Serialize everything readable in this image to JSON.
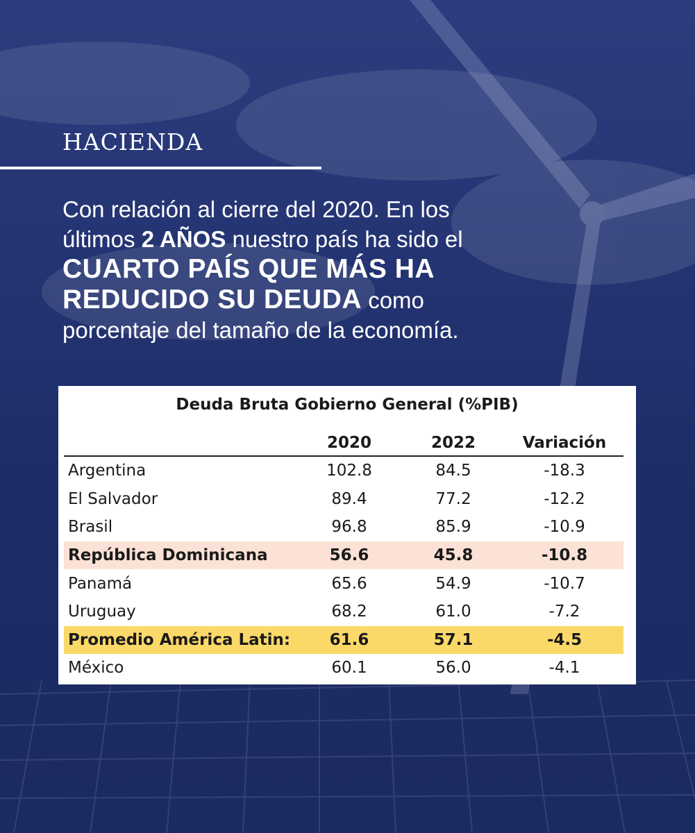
{
  "header": {
    "section_title": "HACIENDA"
  },
  "intro": {
    "line1": "Con relación al cierre del 2020. En los",
    "line2_pre": "últimos ",
    "line2_bold": "2 AÑOS",
    "line2_post": " nuestro país ha sido el",
    "line3_big": "CUARTO PAÍS QUE MÁS HA",
    "line4_big": "REDUCIDO SU DEUDA",
    "line4_post": " como",
    "line5": "porcentaje del tamaño de la economía."
  },
  "table": {
    "title": "Deuda Bruta Gobierno General (%PIB)",
    "headers": [
      "",
      "2020",
      "2022",
      "Variación"
    ],
    "rows": [
      [
        "Argentina",
        "102.8",
        "84.5",
        "-18.3"
      ],
      [
        "El Salvador",
        "89.4",
        "77.2",
        "-12.2"
      ],
      [
        "Brasil",
        "96.8",
        "85.9",
        "-10.9"
      ],
      [
        "República Dominicana",
        "56.6",
        "45.8",
        "-10.8"
      ],
      [
        "Panamá",
        "65.6",
        "54.9",
        "-10.7"
      ],
      [
        "Uruguay",
        "68.2",
        "61.0",
        "-7.2"
      ],
      [
        "Promedio América Latin:",
        "61.6",
        "57.1",
        "-4.5"
      ],
      [
        "México",
        "60.1",
        "56.0",
        "-4.1"
      ]
    ],
    "highlight_colors": {
      "República Dominicana": "#fbe1d6",
      "Promedio América Latin:": "#fbd968"
    }
  },
  "colors": {
    "background": "#1f2f6b",
    "text": "#ffffff"
  }
}
